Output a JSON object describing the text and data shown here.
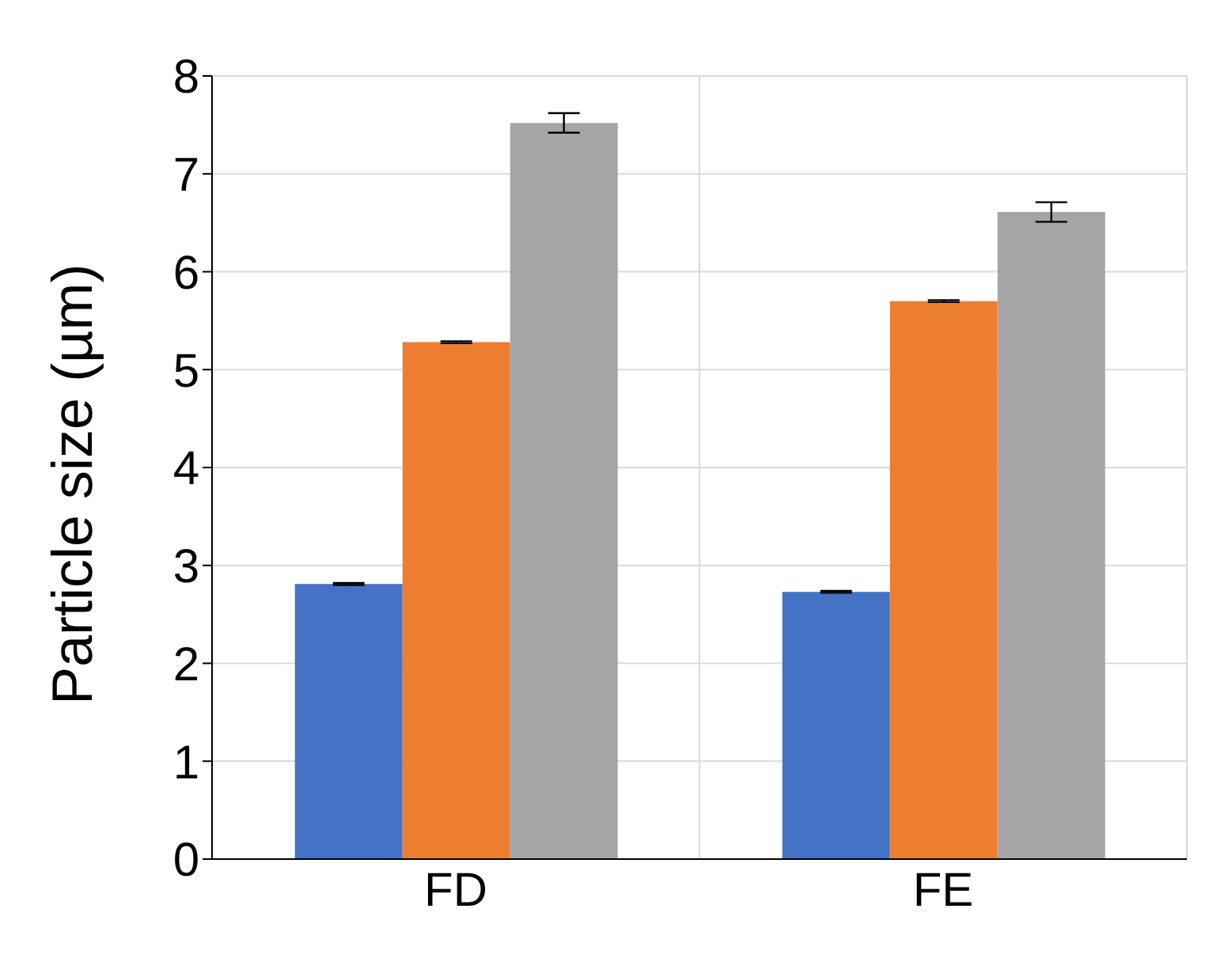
{
  "chart_data": {
    "type": "bar",
    "ylabel": "Particle size (µm)",
    "categories": [
      "FD",
      "FE"
    ],
    "series": [
      {
        "color": "#4472c4",
        "values": [
          2.81,
          2.73
        ],
        "errors": [
          0.01,
          0.01
        ]
      },
      {
        "color": "#ed7d31",
        "values": [
          5.28,
          5.7
        ],
        "errors": [
          0.01,
          0.01
        ]
      },
      {
        "color": "#a5a5a5",
        "values": [
          7.52,
          6.61
        ],
        "errors": [
          0.1,
          0.1
        ]
      }
    ],
    "ylim": [
      0,
      8
    ],
    "yticks": [
      0,
      1,
      2,
      3,
      4,
      5,
      6,
      7,
      8
    ],
    "grid": true,
    "legend": false
  }
}
